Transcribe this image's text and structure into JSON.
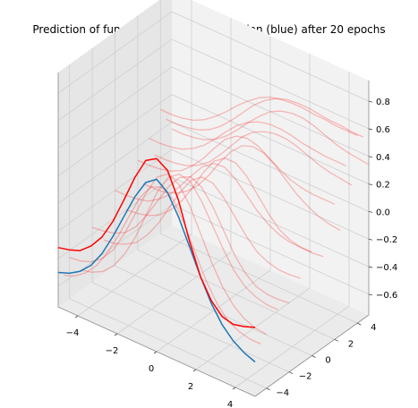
{
  "chart_data": {
    "type": "line",
    "projection": "3d",
    "title": "Prediction of function (red) vs real function (blue) after 20 epochs",
    "xlabel": "",
    "ylabel": "",
    "zlabel": "",
    "xlim": [
      -5,
      5
    ],
    "ylim": [
      -5,
      5
    ],
    "zlim": [
      -0.75,
      0.95
    ],
    "x_ticks": [
      -4,
      -2,
      0,
      2,
      4
    ],
    "y_ticks": [
      -4,
      -2,
      0,
      2,
      4
    ],
    "z_ticks": [
      -0.6,
      -0.4,
      -0.2,
      0.0,
      0.2,
      0.4,
      0.6,
      0.8
    ],
    "grid": true,
    "x": [
      -5,
      -4.444,
      -3.889,
      -3.333,
      -2.778,
      -2.222,
      -1.667,
      -1.111,
      -0.556,
      0,
      0.556,
      1.111,
      1.667,
      2.222,
      2.778,
      3.333,
      3.889,
      4.444,
      5
    ],
    "series": [
      {
        "color": "#1f77b4",
        "y": -5,
        "values": [
          -0.5,
          -0.47,
          -0.42,
          -0.34,
          -0.22,
          -0.06,
          0.12,
          0.3,
          0.44,
          0.5,
          0.44,
          0.3,
          0.12,
          -0.06,
          -0.22,
          -0.34,
          -0.42,
          -0.47,
          -0.5
        ]
      },
      {
        "color": "#ff0000",
        "y": -5,
        "values": [
          -0.32,
          -0.3,
          -0.27,
          -0.2,
          -0.1,
          0.05,
          0.24,
          0.44,
          0.6,
          0.65,
          0.6,
          0.42,
          0.16,
          -0.06,
          -0.2,
          -0.28,
          -0.3,
          -0.28,
          -0.25
        ]
      }
    ],
    "faint_series_color": "#ff0000",
    "faint_series": [
      {
        "y": -4.5,
        "values": [
          -0.55,
          -0.52,
          -0.46,
          -0.37,
          -0.24,
          -0.08,
          0.1,
          0.27,
          0.38,
          0.41,
          0.36,
          0.22,
          0.05,
          -0.12,
          -0.25,
          -0.34,
          -0.38,
          -0.4,
          -0.4
        ]
      },
      {
        "y": -4.0,
        "values": [
          -0.45,
          -0.44,
          -0.41,
          -0.35,
          -0.25,
          -0.1,
          0.08,
          0.27,
          0.42,
          0.48,
          0.44,
          0.32,
          0.15,
          -0.02,
          -0.16,
          -0.26,
          -0.32,
          -0.35,
          -0.36
        ]
      },
      {
        "y": -3.0,
        "values": [
          -0.6,
          -0.58,
          -0.54,
          -0.46,
          -0.34,
          -0.18,
          0.02,
          0.22,
          0.36,
          0.42,
          0.4,
          0.3,
          0.16,
          0.02,
          -0.1,
          -0.18,
          -0.22,
          -0.24,
          -0.24
        ]
      },
      {
        "y": -2.0,
        "values": [
          -0.35,
          -0.34,
          -0.32,
          -0.28,
          -0.2,
          -0.08,
          0.06,
          0.2,
          0.3,
          0.34,
          0.3,
          0.2,
          0.06,
          -0.08,
          -0.18,
          -0.24,
          -0.26,
          -0.26,
          -0.25
        ]
      },
      {
        "y": -1.0,
        "values": [
          -0.5,
          -0.49,
          -0.46,
          -0.41,
          -0.32,
          -0.2,
          -0.05,
          0.1,
          0.22,
          0.28,
          0.27,
          0.2,
          0.1,
          0.0,
          -0.08,
          -0.12,
          -0.14,
          -0.14,
          -0.13
        ]
      },
      {
        "y": 0.0,
        "values": [
          -0.2,
          -0.2,
          -0.19,
          -0.17,
          -0.12,
          -0.05,
          0.05,
          0.16,
          0.26,
          0.32,
          0.33,
          0.28,
          0.2,
          0.12,
          0.06,
          0.02,
          0.0,
          0.0,
          0.0
        ]
      },
      {
        "y": 1.0,
        "values": [
          -0.4,
          -0.39,
          -0.37,
          -0.33,
          -0.26,
          -0.16,
          -0.03,
          0.12,
          0.24,
          0.3,
          0.3,
          0.24,
          0.14,
          0.04,
          -0.04,
          -0.08,
          -0.1,
          -0.1,
          -0.09
        ]
      },
      {
        "y": 2.0,
        "values": [
          -0.1,
          -0.1,
          -0.09,
          -0.07,
          -0.03,
          0.04,
          0.13,
          0.24,
          0.34,
          0.4,
          0.42,
          0.4,
          0.35,
          0.3,
          0.26,
          0.24,
          0.23,
          0.23,
          0.23
        ]
      },
      {
        "y": 2.5,
        "values": [
          -0.3,
          -0.3,
          -0.29,
          -0.26,
          -0.21,
          -0.13,
          -0.02,
          0.11,
          0.22,
          0.3,
          0.33,
          0.32,
          0.27,
          0.2,
          0.13,
          0.08,
          0.04,
          0.02,
          0.01
        ]
      },
      {
        "y": 3.0,
        "values": [
          0.0,
          0.0,
          0.01,
          0.03,
          0.07,
          0.13,
          0.21,
          0.3,
          0.38,
          0.44,
          0.48,
          0.5,
          0.5,
          0.49,
          0.47,
          0.46,
          0.45,
          0.45,
          0.45
        ]
      },
      {
        "y": 3.5,
        "values": [
          -0.15,
          -0.15,
          -0.14,
          -0.12,
          -0.08,
          -0.02,
          0.07,
          0.17,
          0.27,
          0.34,
          0.38,
          0.4,
          0.4,
          0.38,
          0.35,
          0.32,
          0.3,
          0.29,
          0.28
        ]
      },
      {
        "y": 4.0,
        "values": [
          0.15,
          0.15,
          0.16,
          0.18,
          0.22,
          0.28,
          0.35,
          0.43,
          0.5,
          0.56,
          0.6,
          0.62,
          0.63,
          0.63,
          0.62,
          0.62,
          0.61,
          0.61,
          0.61
        ]
      },
      {
        "y": 4.5,
        "values": [
          0.05,
          0.05,
          0.06,
          0.08,
          0.12,
          0.18,
          0.26,
          0.35,
          0.44,
          0.51,
          0.56,
          0.59,
          0.6,
          0.6,
          0.59,
          0.58,
          0.58,
          0.57,
          0.57
        ]
      },
      {
        "y": 5.0,
        "values": [
          -0.05,
          -0.05,
          -0.04,
          -0.02,
          0.02,
          0.08,
          0.16,
          0.25,
          0.33,
          0.4,
          0.44,
          0.46,
          0.46,
          0.44,
          0.41,
          0.38,
          0.36,
          0.35,
          0.34
        ]
      }
    ]
  }
}
